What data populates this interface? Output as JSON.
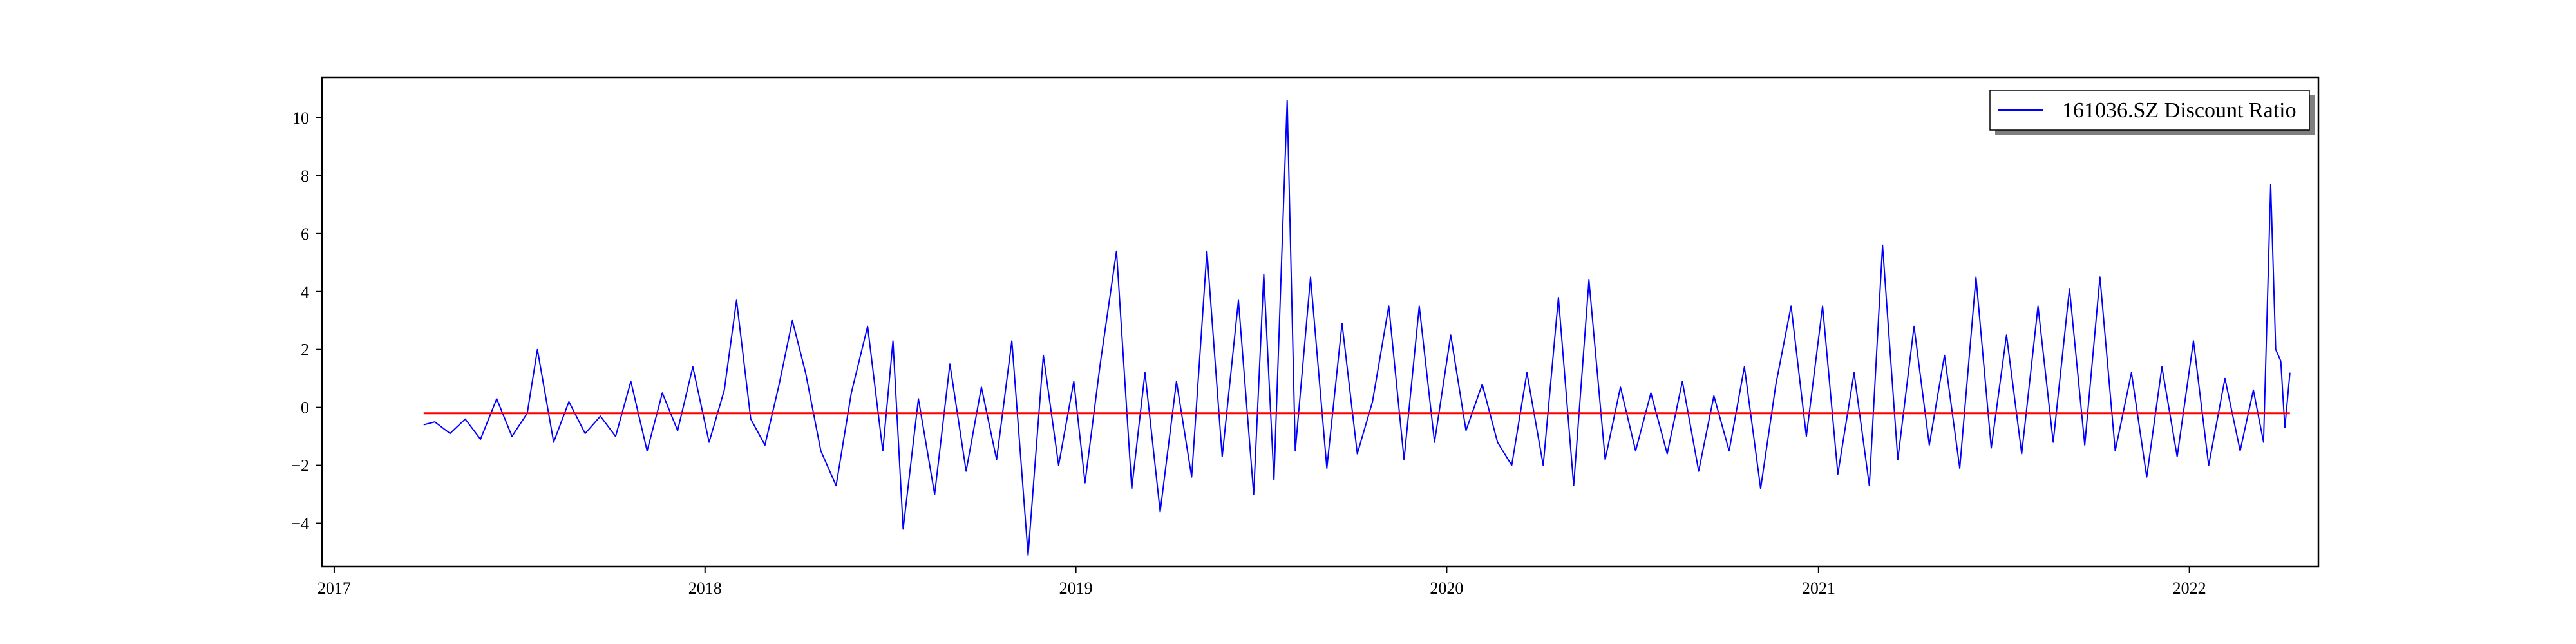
{
  "chart_data": {
    "type": "line",
    "title": "",
    "xlabel": "",
    "ylabel": "",
    "x_axis_type": "date",
    "xlim": [
      "2016-12-20",
      "2022-05-08"
    ],
    "ylim": [
      -5.5,
      11.4
    ],
    "x_ticks": [
      "2017",
      "2018",
      "2019",
      "2020",
      "2021",
      "2022"
    ],
    "y_ticks": [
      -4,
      -2,
      0,
      2,
      4,
      6,
      8,
      10
    ],
    "grid": false,
    "legend": {
      "placement": "top-right",
      "shadow": true
    },
    "series": [
      {
        "name": "161036.SZ Discount Ratio",
        "color": "#0000ff",
        "points": [
          [
            "2017-03-30",
            -0.6
          ],
          [
            "2017-04-10",
            -0.5
          ],
          [
            "2017-04-25",
            -0.9
          ],
          [
            "2017-05-10",
            -0.4
          ],
          [
            "2017-05-25",
            -1.1
          ],
          [
            "2017-06-10",
            0.3
          ],
          [
            "2017-06-25",
            -1.0
          ],
          [
            "2017-07-10",
            -0.2
          ],
          [
            "2017-07-20",
            2.0
          ],
          [
            "2017-08-05",
            -1.2
          ],
          [
            "2017-08-20",
            0.2
          ],
          [
            "2017-09-05",
            -0.9
          ],
          [
            "2017-09-20",
            -0.3
          ],
          [
            "2017-10-05",
            -1.0
          ],
          [
            "2017-10-20",
            0.9
          ],
          [
            "2017-11-05",
            -1.5
          ],
          [
            "2017-11-20",
            0.5
          ],
          [
            "2017-12-05",
            -0.8
          ],
          [
            "2017-12-20",
            1.4
          ],
          [
            "2018-01-05",
            -1.2
          ],
          [
            "2018-01-20",
            0.6
          ],
          [
            "2018-02-01",
            3.7
          ],
          [
            "2018-02-15",
            -0.4
          ],
          [
            "2018-03-01",
            -1.3
          ],
          [
            "2018-03-15",
            0.8
          ],
          [
            "2018-03-28",
            3.0
          ],
          [
            "2018-04-10",
            1.2
          ],
          [
            "2018-04-25",
            -1.5
          ],
          [
            "2018-05-10",
            -2.7
          ],
          [
            "2018-05-25",
            0.5
          ],
          [
            "2018-06-10",
            2.8
          ],
          [
            "2018-06-25",
            -1.5
          ],
          [
            "2018-07-05",
            2.3
          ],
          [
            "2018-07-15",
            -4.2
          ],
          [
            "2018-07-30",
            0.3
          ],
          [
            "2018-08-15",
            -3.0
          ],
          [
            "2018-08-30",
            1.5
          ],
          [
            "2018-09-15",
            -2.2
          ],
          [
            "2018-09-30",
            0.7
          ],
          [
            "2018-10-15",
            -1.8
          ],
          [
            "2018-10-30",
            2.3
          ],
          [
            "2018-11-15",
            -5.1
          ],
          [
            "2018-11-30",
            1.8
          ],
          [
            "2018-12-15",
            -2.0
          ],
          [
            "2018-12-30",
            0.9
          ],
          [
            "2019-01-10",
            -2.6
          ],
          [
            "2019-01-25",
            1.5
          ],
          [
            "2019-02-10",
            5.4
          ],
          [
            "2019-02-25",
            -2.8
          ],
          [
            "2019-03-10",
            1.2
          ],
          [
            "2019-03-25",
            -3.6
          ],
          [
            "2019-04-10",
            0.9
          ],
          [
            "2019-04-25",
            -2.4
          ],
          [
            "2019-05-10",
            5.4
          ],
          [
            "2019-05-25",
            -1.7
          ],
          [
            "2019-06-10",
            3.7
          ],
          [
            "2019-06-25",
            -3.0
          ],
          [
            "2019-07-05",
            4.6
          ],
          [
            "2019-07-15",
            -2.5
          ],
          [
            "2019-07-28",
            10.6
          ],
          [
            "2019-08-05",
            -1.5
          ],
          [
            "2019-08-20",
            4.5
          ],
          [
            "2019-09-05",
            -2.1
          ],
          [
            "2019-09-20",
            2.9
          ],
          [
            "2019-10-05",
            -1.6
          ],
          [
            "2019-10-20",
            0.2
          ],
          [
            "2019-11-05",
            3.5
          ],
          [
            "2019-11-20",
            -1.8
          ],
          [
            "2019-12-05",
            3.5
          ],
          [
            "2019-12-20",
            -1.2
          ],
          [
            "2020-01-05",
            2.5
          ],
          [
            "2020-01-20",
            -0.8
          ],
          [
            "2020-02-05",
            0.8
          ],
          [
            "2020-02-20",
            -1.2
          ],
          [
            "2020-03-05",
            -2.0
          ],
          [
            "2020-03-20",
            1.2
          ],
          [
            "2020-04-05",
            -2.0
          ],
          [
            "2020-04-20",
            3.8
          ],
          [
            "2020-05-05",
            -2.7
          ],
          [
            "2020-05-20",
            4.4
          ],
          [
            "2020-06-05",
            -1.8
          ],
          [
            "2020-06-20",
            0.7
          ],
          [
            "2020-07-05",
            -1.5
          ],
          [
            "2020-07-20",
            0.5
          ],
          [
            "2020-08-05",
            -1.6
          ],
          [
            "2020-08-20",
            0.9
          ],
          [
            "2020-09-05",
            -2.2
          ],
          [
            "2020-09-20",
            0.4
          ],
          [
            "2020-10-05",
            -1.5
          ],
          [
            "2020-10-20",
            1.4
          ],
          [
            "2020-11-05",
            -2.8
          ],
          [
            "2020-11-20",
            0.8
          ],
          [
            "2020-12-05",
            3.5
          ],
          [
            "2020-12-20",
            -1.0
          ],
          [
            "2021-01-05",
            3.5
          ],
          [
            "2021-01-20",
            -2.3
          ],
          [
            "2021-02-05",
            1.2
          ],
          [
            "2021-02-20",
            -2.7
          ],
          [
            "2021-03-05",
            5.6
          ],
          [
            "2021-03-20",
            -1.8
          ],
          [
            "2021-04-05",
            2.8
          ],
          [
            "2021-04-20",
            -1.3
          ],
          [
            "2021-05-05",
            1.8
          ],
          [
            "2021-05-20",
            -2.1
          ],
          [
            "2021-06-05",
            4.5
          ],
          [
            "2021-06-20",
            -1.4
          ],
          [
            "2021-07-05",
            2.5
          ],
          [
            "2021-07-20",
            -1.6
          ],
          [
            "2021-08-05",
            3.5
          ],
          [
            "2021-08-20",
            -1.2
          ],
          [
            "2021-09-05",
            4.1
          ],
          [
            "2021-09-20",
            -1.3
          ],
          [
            "2021-10-05",
            4.5
          ],
          [
            "2021-10-20",
            -1.5
          ],
          [
            "2021-11-05",
            1.2
          ],
          [
            "2021-11-20",
            -2.4
          ],
          [
            "2021-12-05",
            1.4
          ],
          [
            "2021-12-20",
            -1.7
          ],
          [
            "2022-01-05",
            2.3
          ],
          [
            "2022-01-20",
            -2.0
          ],
          [
            "2022-02-05",
            1.0
          ],
          [
            "2022-02-20",
            -1.5
          ],
          [
            "2022-03-05",
            0.6
          ],
          [
            "2022-03-15",
            -1.2
          ],
          [
            "2022-03-22",
            7.7
          ],
          [
            "2022-03-27",
            2.0
          ],
          [
            "2022-04-01",
            1.6
          ],
          [
            "2022-04-05",
            -0.7
          ],
          [
            "2022-04-10",
            1.2
          ]
        ]
      },
      {
        "color": "#ff0000",
        "points": [
          [
            "2017-03-30",
            -0.2
          ],
          [
            "2022-04-10",
            -0.2
          ]
        ]
      }
    ]
  }
}
